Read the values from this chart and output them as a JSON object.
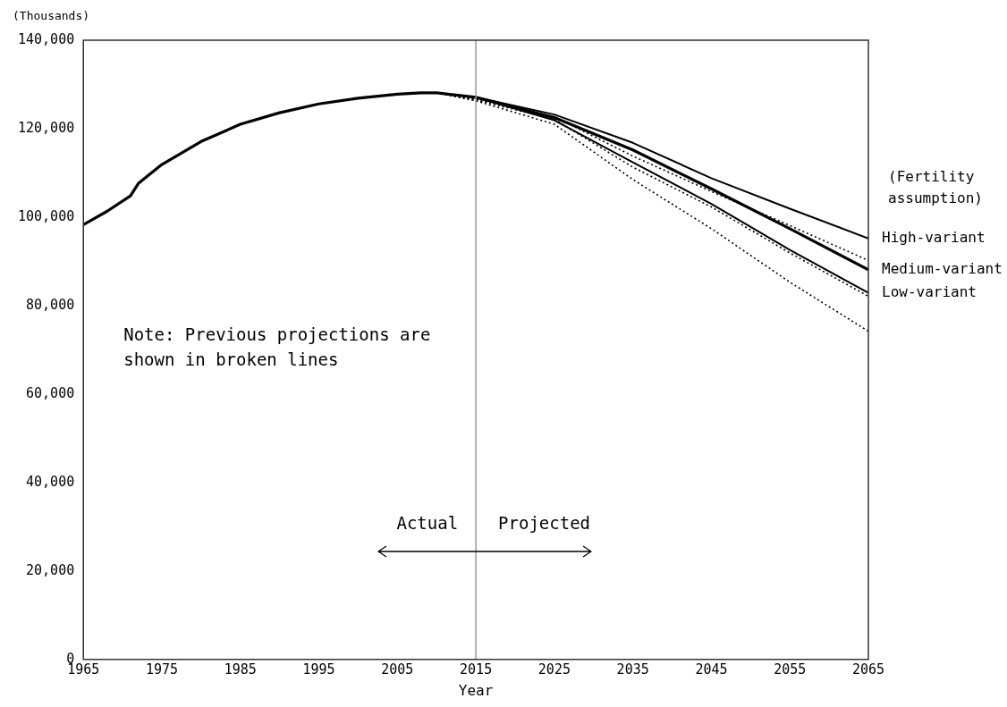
{
  "chart_data": {
    "type": "line",
    "xlabel": "Year",
    "ylabel": "(Thousands)",
    "legend_title": "(Fertility assumption)",
    "xlim": [
      1965,
      2065
    ],
    "xticks": [
      1965,
      1975,
      1985,
      1995,
      2005,
      2015,
      2025,
      2035,
      2045,
      2055,
      2065
    ],
    "ylim": [
      0,
      140000
    ],
    "yticks": [
      0,
      {
        "value": 20000,
        "label": "20,000"
      },
      {
        "value": 40000,
        "label": "40,000"
      },
      {
        "value": 60000,
        "label": "60,000"
      },
      {
        "value": 80000,
        "label": "80,000"
      },
      {
        "value": 100000,
        "label": "100,000"
      },
      {
        "value": 120000,
        "label": "120,000"
      },
      {
        "value": 140000,
        "label": "140,000"
      }
    ],
    "grid": false,
    "legend": false,
    "marker": "none",
    "series": [
      {
        "color": "#000000",
        "line_style": "dotted",
        "x": [
          2010,
          2015,
          2025,
          2035,
          2045,
          2055,
          2065
        ],
        "values": [
          128100,
          126600,
          122700,
          113800,
          105800,
          98100,
          90200
        ]
      },
      {
        "color": "#000000",
        "line_style": "dotted",
        "x": [
          2010,
          2015,
          2025,
          2035,
          2045,
          2055,
          2065
        ],
        "values": [
          128100,
          126500,
          122100,
          111300,
          102300,
          91900,
          82100
        ]
      },
      {
        "color": "#000000",
        "line_style": "dotted",
        "x": [
          2010,
          2015,
          2025,
          2035,
          2045,
          2055,
          2065
        ],
        "values": [
          128100,
          126300,
          121000,
          108500,
          97400,
          85300,
          74200
        ]
      },
      {
        "name": "High-variant",
        "color": "#000000",
        "line_style": "solid",
        "x": [
          2015,
          2025,
          2035,
          2045,
          2055,
          2065
        ],
        "values": [
          127100,
          123200,
          116800,
          108800,
          101900,
          95200
        ]
      },
      {
        "name": "Medium-variant",
        "color": "#000000",
        "line_style": "solid",
        "x": [
          1965,
          1968,
          1971,
          1972,
          1975,
          1980,
          1985,
          1990,
          1995,
          2000,
          2005,
          2008,
          2010,
          2015,
          2025,
          2035,
          2045,
          2055,
          2065
        ],
        "values": [
          98300,
          101300,
          104800,
          107600,
          111900,
          117100,
          121000,
          123600,
          125600,
          126900,
          127800,
          128100,
          128100,
          127100,
          122500,
          115200,
          106400,
          97400,
          88100
        ]
      },
      {
        "name": "Low-variant",
        "color": "#000000",
        "line_style": "solid",
        "x": [
          2015,
          2025,
          2035,
          2045,
          2055,
          2065
        ],
        "values": [
          127100,
          121900,
          112400,
          103000,
          92600,
          82900
        ]
      }
    ],
    "ref_lines": [
      {
        "axis": "x",
        "value": 2015,
        "color": "#999999"
      }
    ],
    "annotations": [
      "Note: Previous projections are\nshown in broken lines",
      "Actual",
      "Projected"
    ]
  }
}
